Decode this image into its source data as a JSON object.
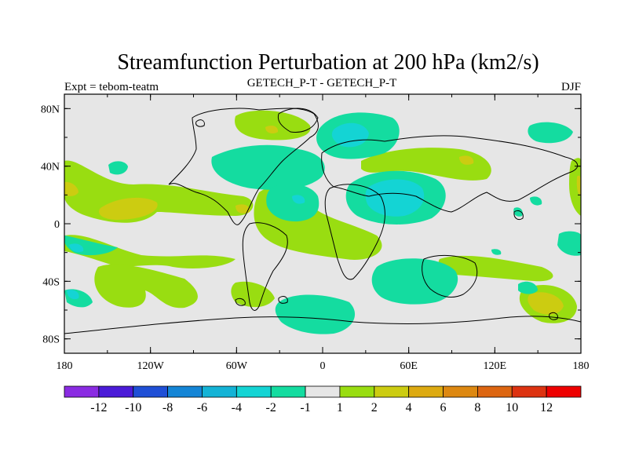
{
  "chart_data": {
    "type": "heatmap",
    "title": "Streamfunction Perturbation at 200 hPa (km2/s)",
    "left_label": "Expt = tebom-teatm",
    "center_label": "GETECH_P-T - GETECH_P-T",
    "right_label": "DJF",
    "x_ticks": [
      "180",
      "120W",
      "60W",
      "0",
      "60E",
      "120E",
      "180"
    ],
    "y_ticks": [
      "80N",
      "40N",
      "0",
      "40S",
      "80S"
    ],
    "xlim": [
      -180,
      180
    ],
    "ylim": [
      -90,
      90
    ],
    "colorbar_colors": [
      "#8a2be2",
      "#4b1bd8",
      "#1f4fd6",
      "#1485d6",
      "#14b3d6",
      "#14d4d4",
      "#14dca0",
      "#e6e6e6",
      "#99dd11",
      "#cccc11",
      "#ddaa11",
      "#dd8811",
      "#dd6611",
      "#dd3311",
      "#ee0000"
    ],
    "colorbar_labels": [
      "-12",
      "-10",
      "-8",
      "-6",
      "-4",
      "-2",
      "-1",
      "1",
      "2",
      "4",
      "6",
      "8",
      "10",
      "12"
    ]
  }
}
